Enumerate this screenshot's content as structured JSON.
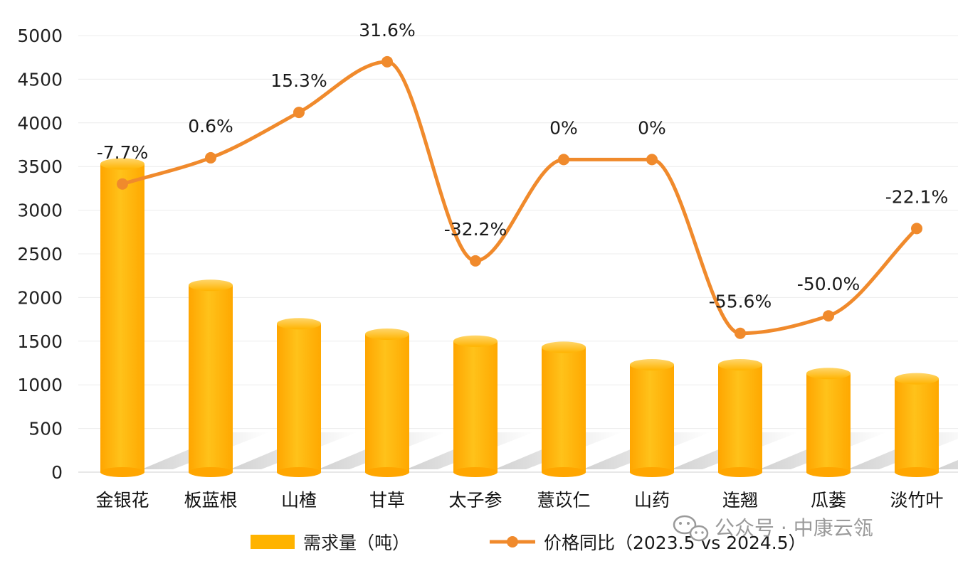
{
  "chart_data": {
    "type": "bar",
    "categories": [
      "金银花",
      "板蓝根",
      "山楂",
      "甘草",
      "太子参",
      "薏苡仁",
      "山药",
      "连翘",
      "瓜蒌",
      "淡竹叶"
    ],
    "ylim": [
      0,
      5000
    ],
    "yticks": [
      "0",
      "500",
      "1000",
      "1500",
      "2000",
      "2500",
      "3000",
      "3500",
      "4000",
      "4500",
      "5000"
    ],
    "grid": true,
    "legend_position": "bottom",
    "series": [
      {
        "name": "需求量（吨）",
        "type": "bar",
        "color": "#FFB300",
        "values": [
          3530,
          2140,
          1700,
          1580,
          1500,
          1430,
          1230,
          1230,
          1130,
          1070
        ]
      },
      {
        "name": "价格同比（2023.5 vs 2024.5）",
        "type": "line",
        "color": "#F08A2C",
        "positions": [
          3300,
          3600,
          4120,
          4700,
          2420,
          3580,
          3580,
          1590,
          1790,
          2790
        ],
        "labels": [
          "-7.7%",
          "0.6%",
          "15.3%",
          "31.6%",
          "-32.2%",
          "0%",
          "0%",
          "-55.6%",
          "-50.0%",
          "-22.1%"
        ]
      }
    ]
  },
  "watermark": {
    "icon": "wechat-icon",
    "text": "公众号 · 中康云瓴"
  }
}
